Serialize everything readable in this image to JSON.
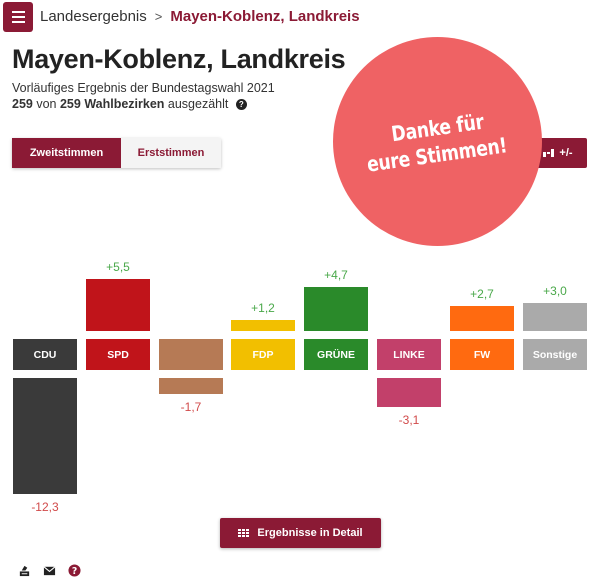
{
  "header": {
    "breadcrumb_root": "Landesergebnis",
    "breadcrumb_separator": ">",
    "breadcrumb_current": "Mayen-Koblenz, Landkreis"
  },
  "main": {
    "title": "Mayen-Koblenz, Landkreis",
    "subtitle": "Vorläufiges Ergebnis der Bundestagswahl 2021",
    "counted_done": "259",
    "counted_of": "von",
    "counted_total": "259 Wahlbezirken",
    "counted_suffix": "ausgezählt"
  },
  "tabs": [
    {
      "label": "Zweitstimmen",
      "active": true
    },
    {
      "label": "Erststimmen",
      "active": false
    }
  ],
  "diff_button": {
    "label": "+/-"
  },
  "badge": {
    "line1": "Danke für",
    "line2": "eure Stimmen!"
  },
  "detail_button": {
    "label": "Ergebnisse in Detail"
  },
  "footer_icons": [
    "ballot-box-icon",
    "envelope-icon",
    "help-icon"
  ],
  "chart_data": {
    "type": "bar",
    "categories": [
      "CDU",
      "SPD",
      "",
      "FDP",
      "GRÜNE",
      "LINKE",
      "FW",
      "Sonstige"
    ],
    "values": [
      -12.3,
      5.5,
      -1.7,
      1.2,
      4.7,
      -3.1,
      2.7,
      3.0
    ],
    "value_labels": [
      "-12,3",
      "+5,5",
      "-1,7",
      "+1,2",
      "+4,7",
      "-3,1",
      "+2,7",
      "+3,0"
    ],
    "colors": [
      "#3a3a3a",
      "#c0141a",
      "#b67a55",
      "#f2bf00",
      "#2a8a2a",
      "#c2406a",
      "#ff6a10",
      "#aaaaaa"
    ],
    "positive_color": "#4aa84a",
    "negative_color": "#d14a4a"
  }
}
